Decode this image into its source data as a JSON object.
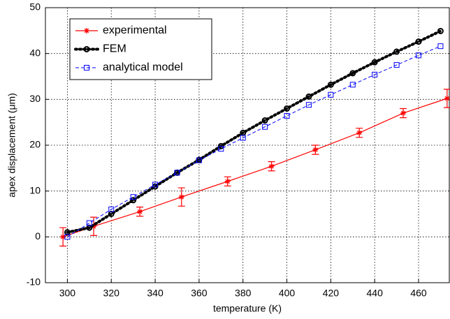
{
  "chart_data": {
    "type": "line",
    "xlabel": "temperature (K)",
    "ylabel": "apex displacement (μm)",
    "xlim": [
      290,
      474
    ],
    "ylim": [
      -10,
      50
    ],
    "xticks": [
      300,
      320,
      340,
      360,
      380,
      400,
      420,
      440,
      460
    ],
    "yticks": [
      -10,
      0,
      10,
      20,
      30,
      40,
      50
    ],
    "grid": true,
    "legend": "upper left",
    "series": [
      {
        "name": "experimental",
        "color": "#ff0000",
        "dash": "solid",
        "marker": "star",
        "x": [
          298,
          312,
          333,
          352,
          373,
          393,
          413,
          433,
          453,
          473
        ],
        "values": [
          0,
          2.3,
          5.5,
          8.7,
          12.1,
          15.4,
          19,
          22.7,
          27,
          30.2
        ],
        "errors": [
          2,
          2,
          1,
          2,
          1,
          1,
          1,
          1,
          1,
          2
        ]
      },
      {
        "name": "FEM",
        "color": "#000000",
        "dash": "dotted",
        "marker": "circle",
        "x": [
          300,
          310,
          320,
          330,
          340,
          350,
          360,
          370,
          380,
          390,
          400,
          410,
          420,
          430,
          440,
          450,
          460,
          470
        ],
        "values": [
          1,
          2,
          5,
          8,
          11,
          14,
          16.8,
          19.8,
          22.7,
          25.4,
          28,
          30.6,
          33.2,
          35.7,
          38.1,
          40.4,
          42.6,
          44.9
        ]
      },
      {
        "name": "analytical model",
        "color": "#0000ff",
        "dash": "dashed",
        "marker": "square",
        "x": [
          300,
          310,
          320,
          330,
          340,
          350,
          360,
          370,
          380,
          390,
          400,
          410,
          420,
          430,
          440,
          450,
          460,
          470
        ],
        "values": [
          0,
          3,
          6,
          8.7,
          11.4,
          14,
          16.7,
          19.2,
          21.6,
          24,
          26.4,
          28.8,
          31,
          33.2,
          35.4,
          37.5,
          39.6,
          41.6
        ]
      }
    ]
  }
}
